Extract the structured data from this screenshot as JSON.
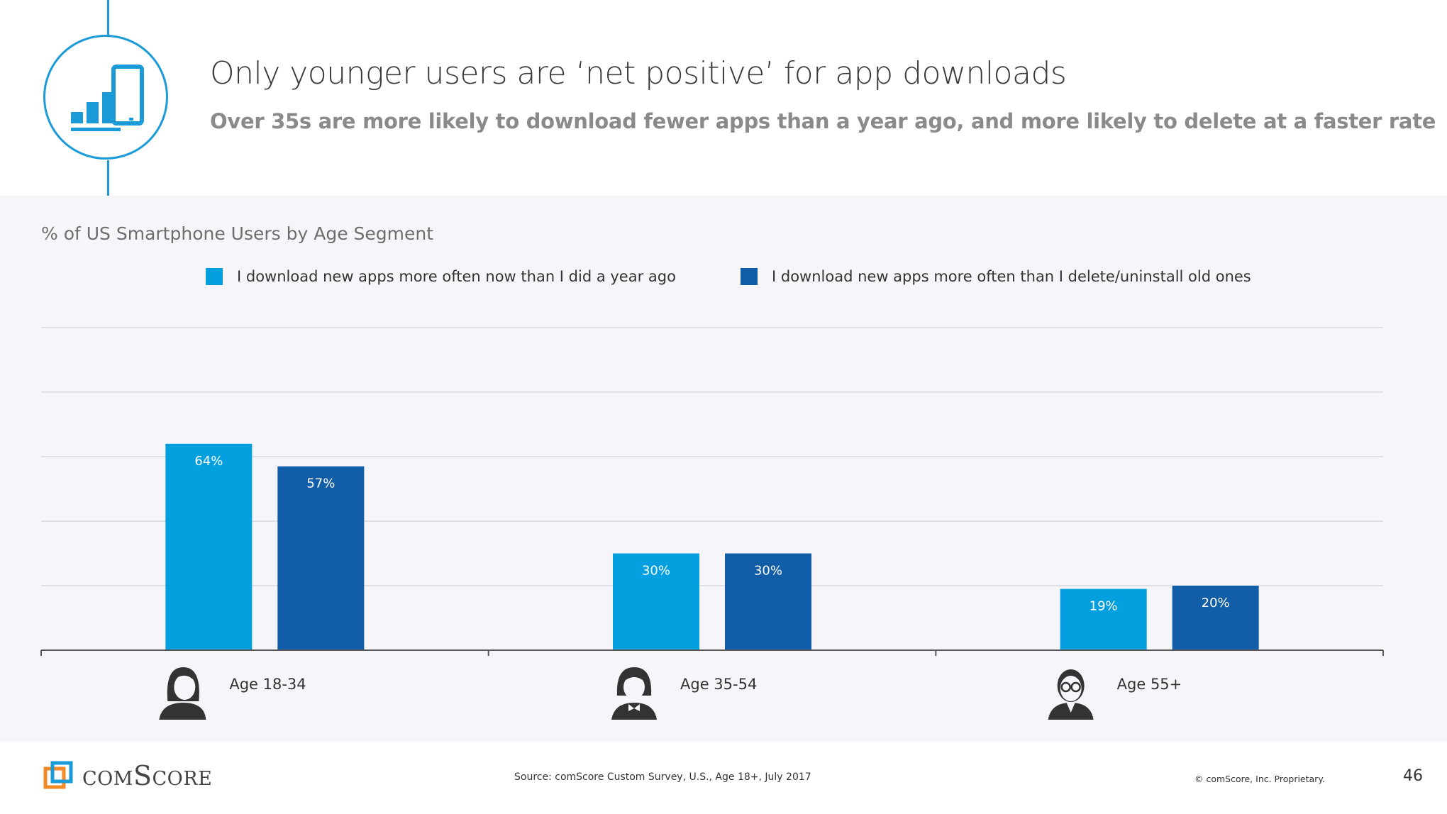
{
  "header": {
    "title": "Only younger users are ‘net positive’ for app downloads",
    "subtitle": "Over 35s are more likely to download fewer apps than a year ago, and more likely to delete at a faster rate",
    "icon": "mobile-app-chart-icon"
  },
  "chart_data": {
    "type": "bar",
    "title": "% of US Smartphone Users by Age Segment",
    "categories": [
      "Age 18-34",
      "Age 35-54",
      "Age 55+"
    ],
    "category_icons": [
      "young-woman-icon",
      "middle-aged-woman-icon",
      "older-man-glasses-icon"
    ],
    "series": [
      {
        "name": "I download new apps more often now than I did a year ago",
        "values": [
          64,
          30,
          19
        ],
        "labels": [
          "64%",
          "30%",
          "19%"
        ],
        "color": "#049fde"
      },
      {
        "name": "I download new apps more often than I delete/uninstall old ones",
        "values": [
          57,
          30,
          20
        ],
        "labels": [
          "57%",
          "30%",
          "20%"
        ],
        "color": "#125da7"
      }
    ],
    "ylim": [
      0,
      100
    ],
    "grid": true,
    "legend_position": "top"
  },
  "footer": {
    "logo_text": "comScore",
    "source": "Source: comScore Custom Survey, U.S., Age 18+, July 2017",
    "copyright": "© comScore, Inc. Proprietary.",
    "page_number": "46"
  },
  "colors": {
    "accent": "#1a9ad6",
    "series1": "#049fde",
    "series2": "#125da7",
    "logo_blue": "#1a9ad6",
    "logo_orange": "#f08a24"
  }
}
